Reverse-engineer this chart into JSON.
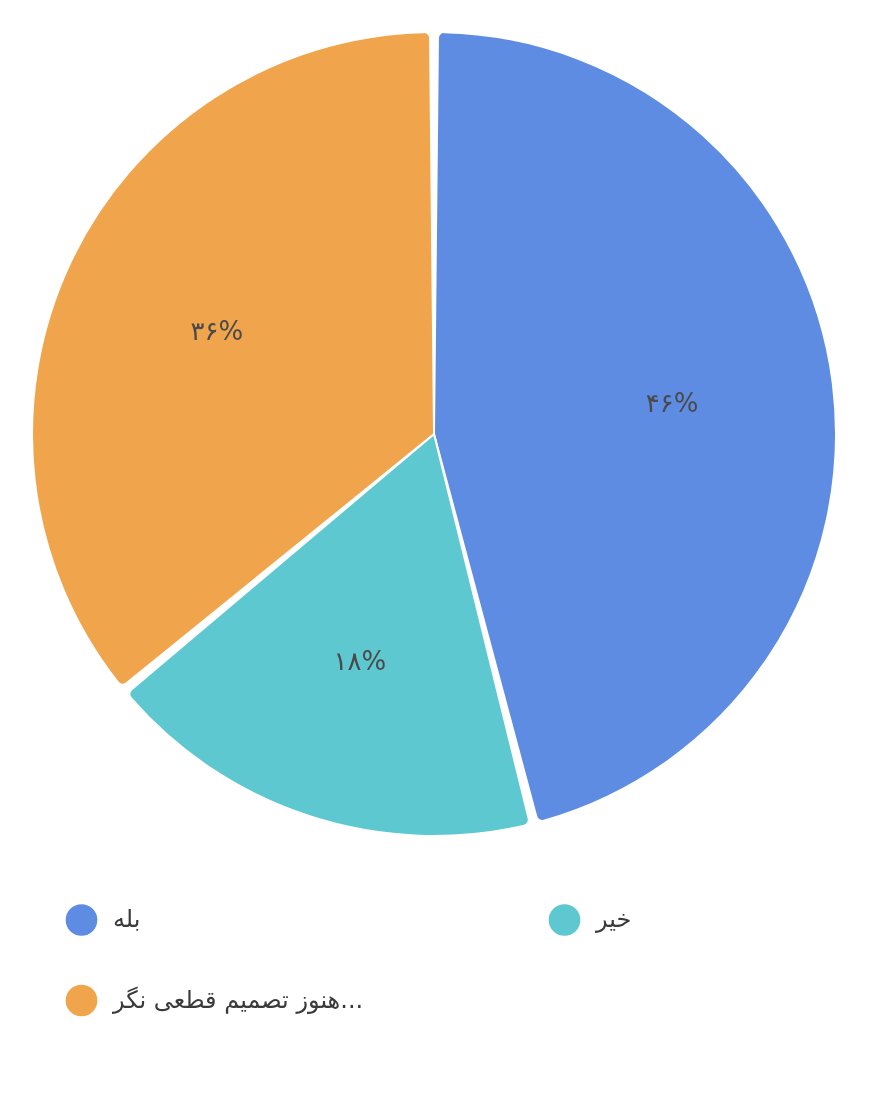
{
  "chart_data": {
    "type": "pie",
    "categories": [
      "بله",
      "خیر",
      "هنوز تصمیم قطعی نگر..."
    ],
    "values": [
      46,
      18,
      36
    ],
    "colors": [
      "#5e8ce3",
      "#5ec8d0",
      "#f0a44c"
    ],
    "value_labels": [
      "۴۶%",
      "۱۸%",
      "۳۶%"
    ],
    "legend": "bottom"
  }
}
